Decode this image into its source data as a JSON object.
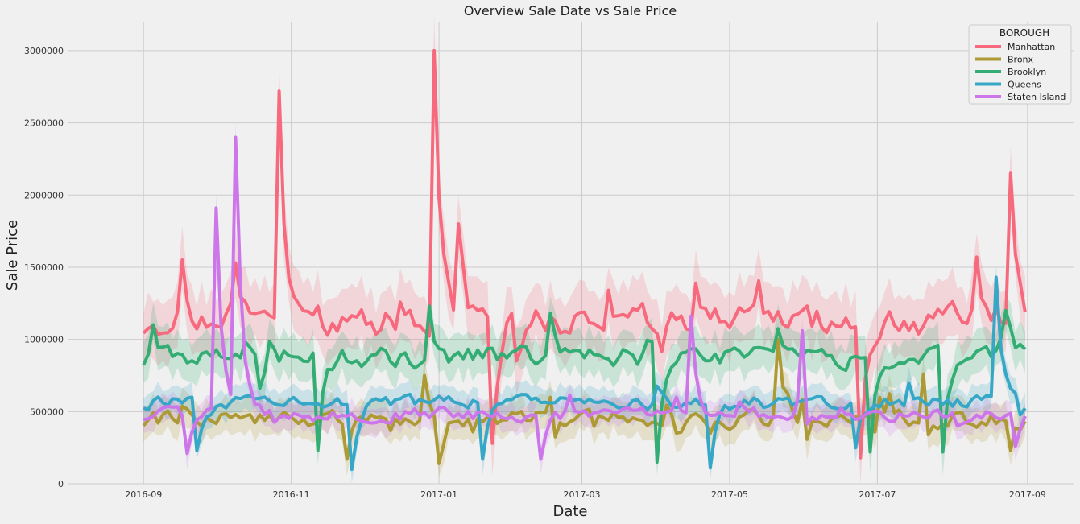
{
  "chart_data": {
    "type": "line",
    "title": "Overview Sale Date vs Sale Price",
    "xlabel": "Date",
    "ylabel": "Sale Price",
    "xlim": [
      "2016-08-01",
      "2017-09-20"
    ],
    "ylim": [
      0,
      3200000
    ],
    "x_ticks": [
      "2016-09",
      "2016-11",
      "2017-01",
      "2017-03",
      "2017-05",
      "2017-07",
      "2017-09"
    ],
    "y_ticks": [
      0,
      500000,
      1000000,
      1500000,
      2000000,
      2500000,
      3000000
    ],
    "grid": true,
    "legend": {
      "title": "BOROUGH",
      "placement": "top-right"
    },
    "date_range": [
      "2016-09-01",
      "2017-08-31"
    ],
    "series": [
      {
        "name": "Manhattan",
        "color": "#f7697d",
        "base": 1130000,
        "jitter": 160000,
        "ci": 250000,
        "peaks": [
          [
            "2016-09-18",
            1550000
          ],
          [
            "2016-10-10",
            1530000
          ],
          [
            "2016-10-28",
            2720000
          ],
          [
            "2016-12-31",
            3000000
          ],
          [
            "2017-01-10",
            1800000
          ],
          [
            "2017-03-12",
            1340000
          ],
          [
            "2017-04-18",
            1390000
          ],
          [
            "2017-08-12",
            1570000
          ],
          [
            "2017-08-26",
            2150000
          ],
          [
            "2017-06-24",
            180000
          ],
          [
            "2017-01-24",
            280000
          ]
        ]
      },
      {
        "name": "Bronx",
        "color": "#ad9a35",
        "base": 450000,
        "jitter": 90000,
        "ci": 140000,
        "peaks": [
          [
            "2016-12-27",
            750000
          ],
          [
            "2017-01-01",
            140000
          ],
          [
            "2016-11-25",
            170000
          ],
          [
            "2017-05-22",
            1000000
          ],
          [
            "2017-07-20",
            760000
          ],
          [
            "2017-08-26",
            230000
          ]
        ]
      },
      {
        "name": "Brooklyn",
        "color": "#33ad74",
        "base": 880000,
        "jitter": 110000,
        "ci": 170000,
        "peaks": [
          [
            "2016-12-28",
            1230000
          ],
          [
            "2017-02-16",
            1180000
          ],
          [
            "2017-08-24",
            1200000
          ],
          [
            "2016-11-12",
            230000
          ],
          [
            "2017-04-01",
            150000
          ],
          [
            "2017-06-28",
            220000
          ],
          [
            "2017-07-28",
            220000
          ]
        ]
      },
      {
        "name": "Queens",
        "color": "#36a7c6",
        "base": 560000,
        "jitter": 70000,
        "ci": 110000,
        "peaks": [
          [
            "2016-11-27",
            100000
          ],
          [
            "2017-01-20",
            170000
          ],
          [
            "2017-04-23",
            110000
          ],
          [
            "2017-08-20",
            1430000
          ],
          [
            "2016-09-24",
            230000
          ],
          [
            "2017-06-22",
            250000
          ]
        ]
      },
      {
        "name": "Staten Island",
        "color": "#cd76ea",
        "base": 480000,
        "jitter": 70000,
        "ci": 110000,
        "peaks": [
          [
            "2016-10-01",
            1910000
          ],
          [
            "2016-10-09",
            2400000
          ],
          [
            "2016-09-20",
            210000
          ],
          [
            "2017-04-16",
            1160000
          ],
          [
            "2017-06-01",
            1060000
          ],
          [
            "2017-02-12",
            170000
          ],
          [
            "2017-08-28",
            260000
          ]
        ]
      }
    ]
  }
}
